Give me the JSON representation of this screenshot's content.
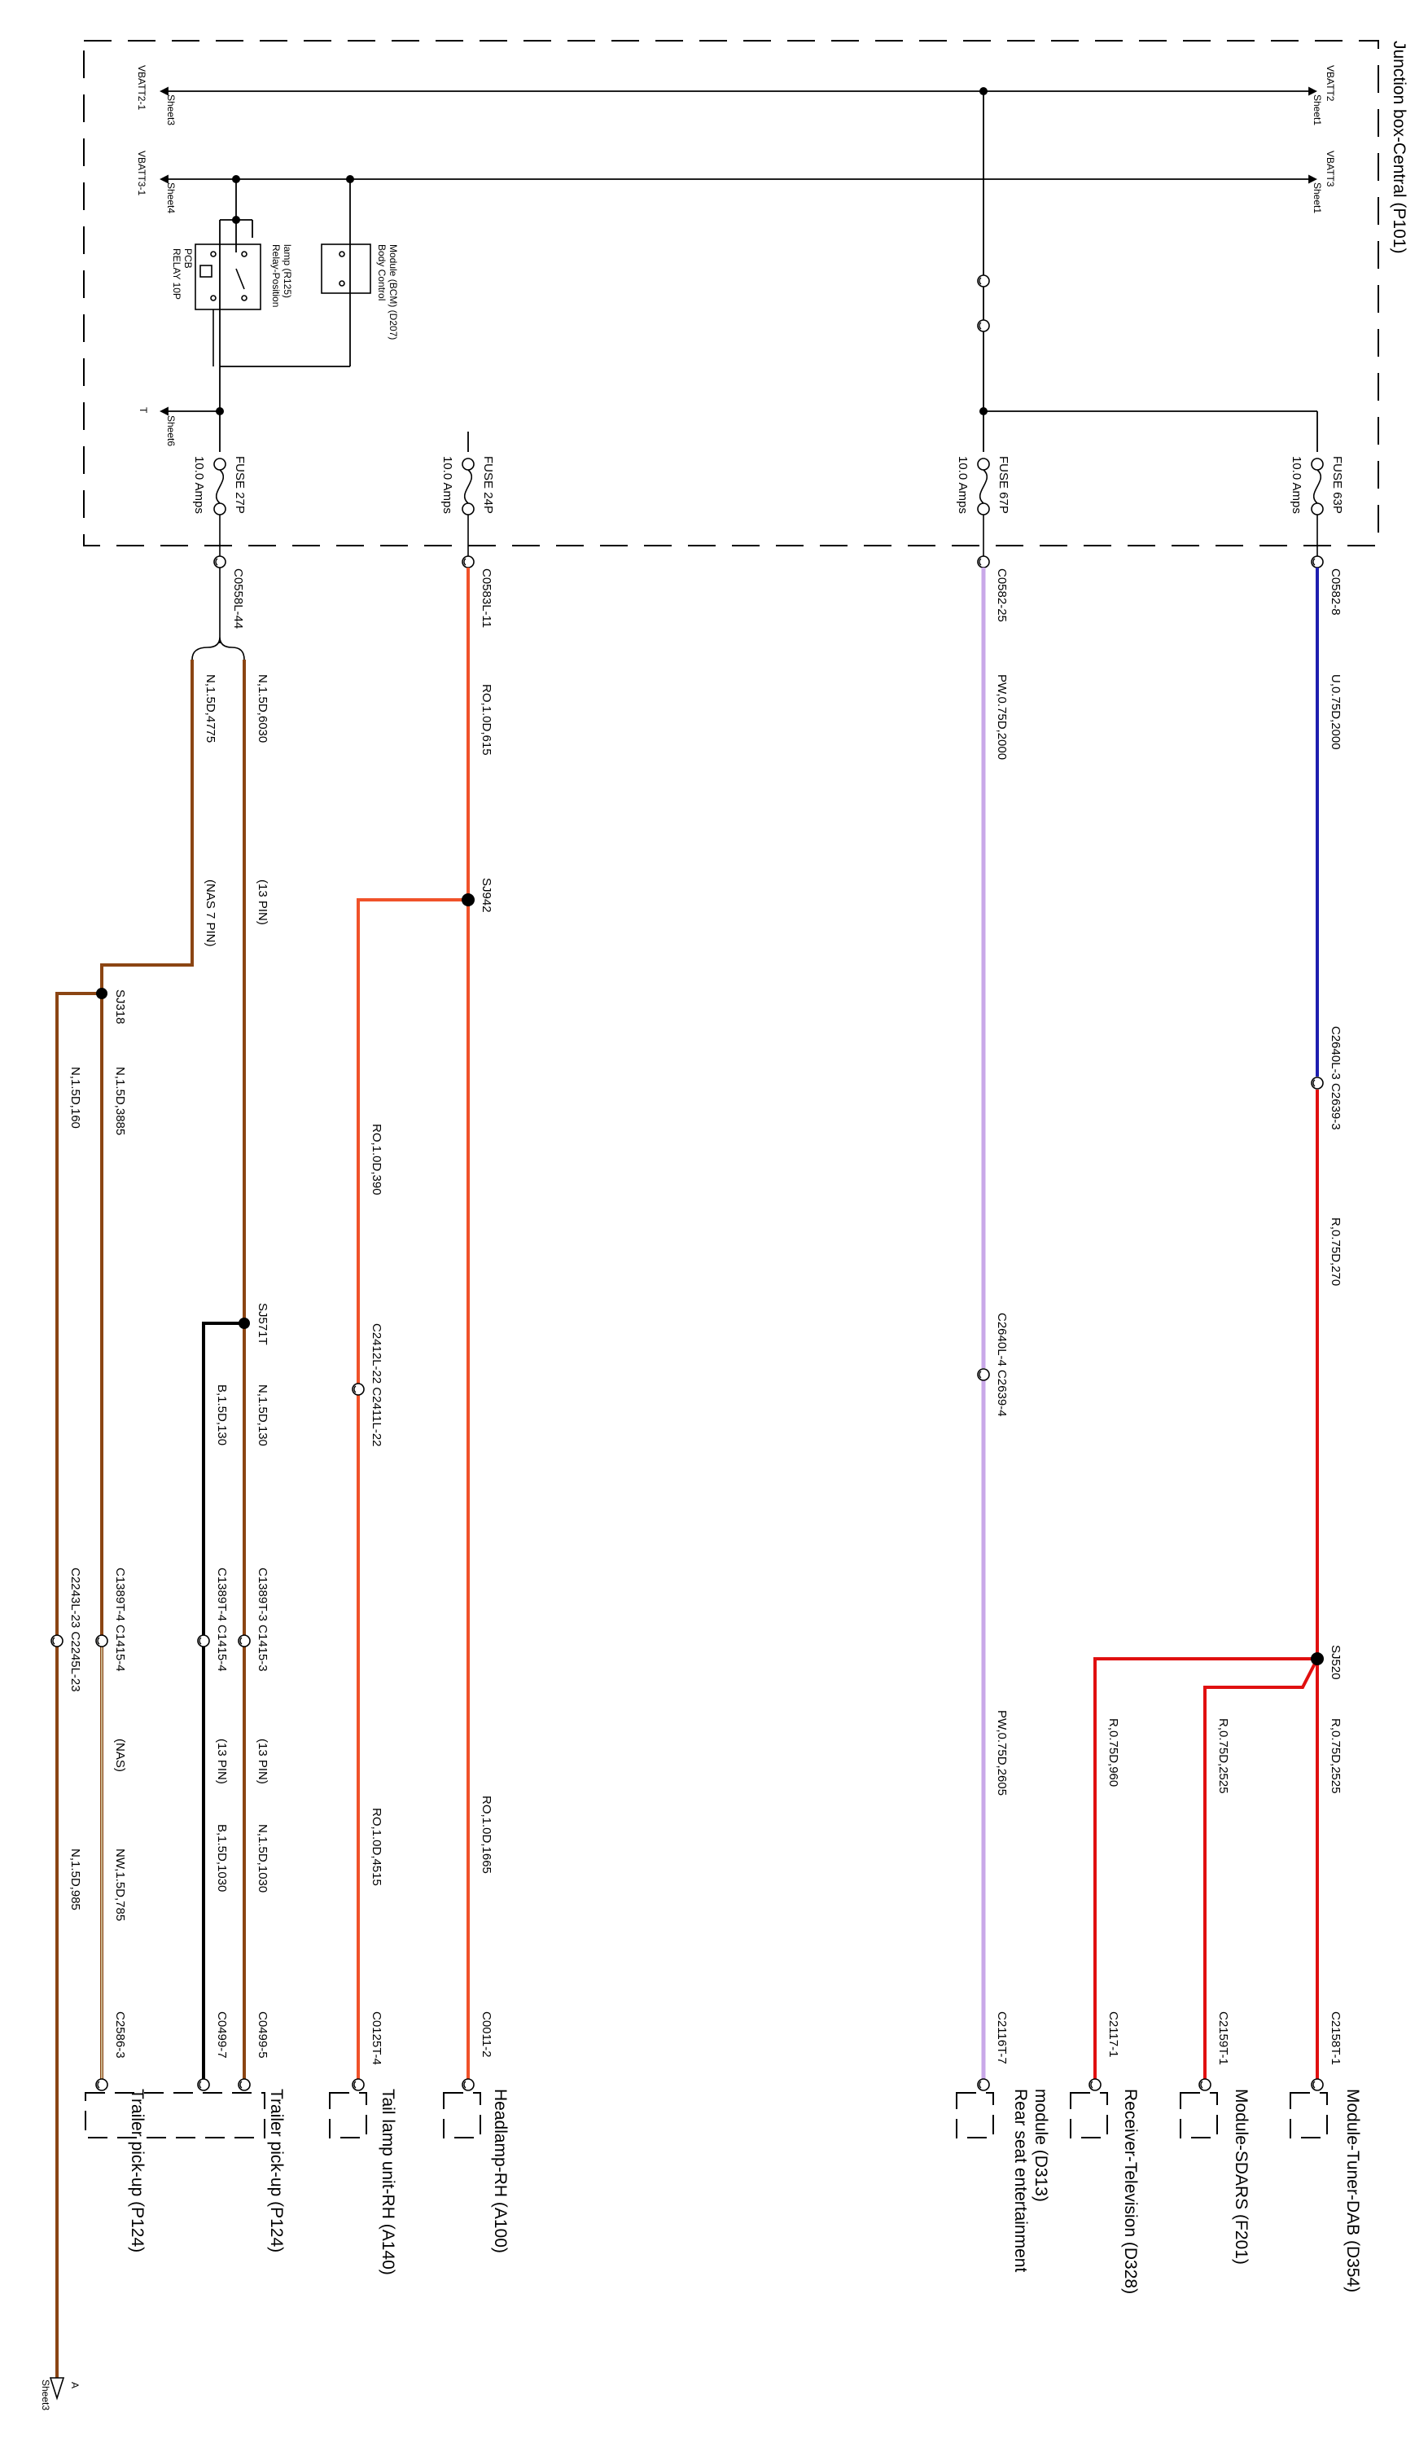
{
  "junction_box": {
    "title": "Junction box-Central (P101)"
  },
  "rails": {
    "vbatt2_left": "VBATT2-1",
    "vbatt2_left_sheet": "Sheet3",
    "vbatt2_right": "VBATT2",
    "vbatt2_right_sheet": "Sheet1",
    "vbatt3_left": "VBATT3-1",
    "vbatt3_left_sheet": "Sheet4",
    "vbatt3_right": "VBATT3",
    "vbatt3_right_sheet": "Sheet1",
    "t_label": "T",
    "t_sheet": "Sheet6"
  },
  "relay": {
    "label1": "Relay-Position",
    "label2": "lamp (R125)",
    "type1": "RELAY 10P",
    "type2": "PCB"
  },
  "bcm": {
    "label1": "Body Control",
    "label2": "Module (BCM) (D207)"
  },
  "fuses": {
    "f27p": "FUSE 27P",
    "f27p_amps": "10.0 Amps",
    "f24p": "FUSE 24P",
    "f24p_amps": "10.0 Amps",
    "f67p": "FUSE 67P",
    "f67p_amps": "10.0 Amps",
    "f63p": "FUSE 63P",
    "f63p_amps": "10.0 Amps"
  },
  "connectors": {
    "c0558l_44": "C0558L-44",
    "c0583l_11": "C0583L-11",
    "c0582_25": "C0582-25",
    "c0582_8": "C0582-8",
    "c2640l_3": "C2640L-3 C2639-3",
    "c2412l_22": "C2412L-22 C2411L-22",
    "c2640l_4": "C2640L-4 C2639-4",
    "c1389t_4_c1415_4_a": "C1389T-4 C1415-4",
    "c1389t_3_c1415_3": "C1389T-3 C1415-3",
    "c1389t_4_c1415_4_b": "C1389T-4 C1415-4",
    "c2243l_23": "C2243L-23 C2245L-23",
    "c2158t_1": "C2158T-1",
    "c2159t_1": "C2159T-1",
    "c2117_1": "C2117-1",
    "c2116t_7": "C2116T-7",
    "c0011_2": "C0011-2",
    "c0125t_4": "C0125T-4",
    "c0499_5": "C0499-5",
    "c0499_7": "C0499-7",
    "c2586_3": "C2586-3"
  },
  "splices": {
    "sj942": "SJ942",
    "sj318": "SJ318",
    "sj571t": "SJ571T",
    "sj520": "SJ520"
  },
  "wires": {
    "n_6030": "N,1.5D,6030",
    "n_4775": "N,1.5D,4775",
    "pin13_a": "(13 PIN)",
    "nas7": "(NAS 7 PIN)",
    "n_3885": "N,1.5D,3885",
    "n_160": "N,1.5D,160",
    "n_130": "N,1.5D,130",
    "b_130": "B,1.5D,130",
    "pin13_b": "(13 PIN)",
    "pin13_c": "(13 PIN)",
    "nas": "(NAS)",
    "n_1030": "N,1.5D,1030",
    "b_1030": "B,1.5D,1030",
    "nw_785": "NW,1.5D,785",
    "n_985": "N,1.5D,985",
    "ro_615": "RO,1.0D,615",
    "ro_390": "RO,1.0D,390",
    "ro_4515": "RO,1.0D,4515",
    "ro_1665": "RO,1.0D,1665",
    "pw_2000": "PW,0.75D,2000",
    "pw_2605": "PW,0.75D,2605",
    "u_2000": "U,0.75D,2000",
    "r_270": "R,0.75D,270",
    "r_2525a": "R,0.75D,2525",
    "r_2525b": "R,0.75D,2525",
    "r_960": "R,0.75D,960"
  },
  "components": {
    "trailer_a": "Trailer pick-up (P124)",
    "trailer_b": "Trailer pick-up (P124)",
    "tail_lamp": "Tail lamp unit-RH (A140)",
    "headlamp": "Headlamp-RH (A100)",
    "rse1": "Rear seat entertainment",
    "rse2": "module (D313)",
    "tv": "Receiver-Television (D328)",
    "sdars": "Module-SDARS (F201)",
    "tuner": "Module-Tuner-DAB (D354)"
  },
  "offsheet": {
    "label": "A",
    "sheet": "Sheet3"
  },
  "colors": {
    "brown": "#8B4513",
    "orange": "#F0522A",
    "lilac": "#C9A8E8",
    "blue": "#1F1FB0",
    "red": "#E01010",
    "black": "#000000",
    "tan": "#C8B48C"
  }
}
